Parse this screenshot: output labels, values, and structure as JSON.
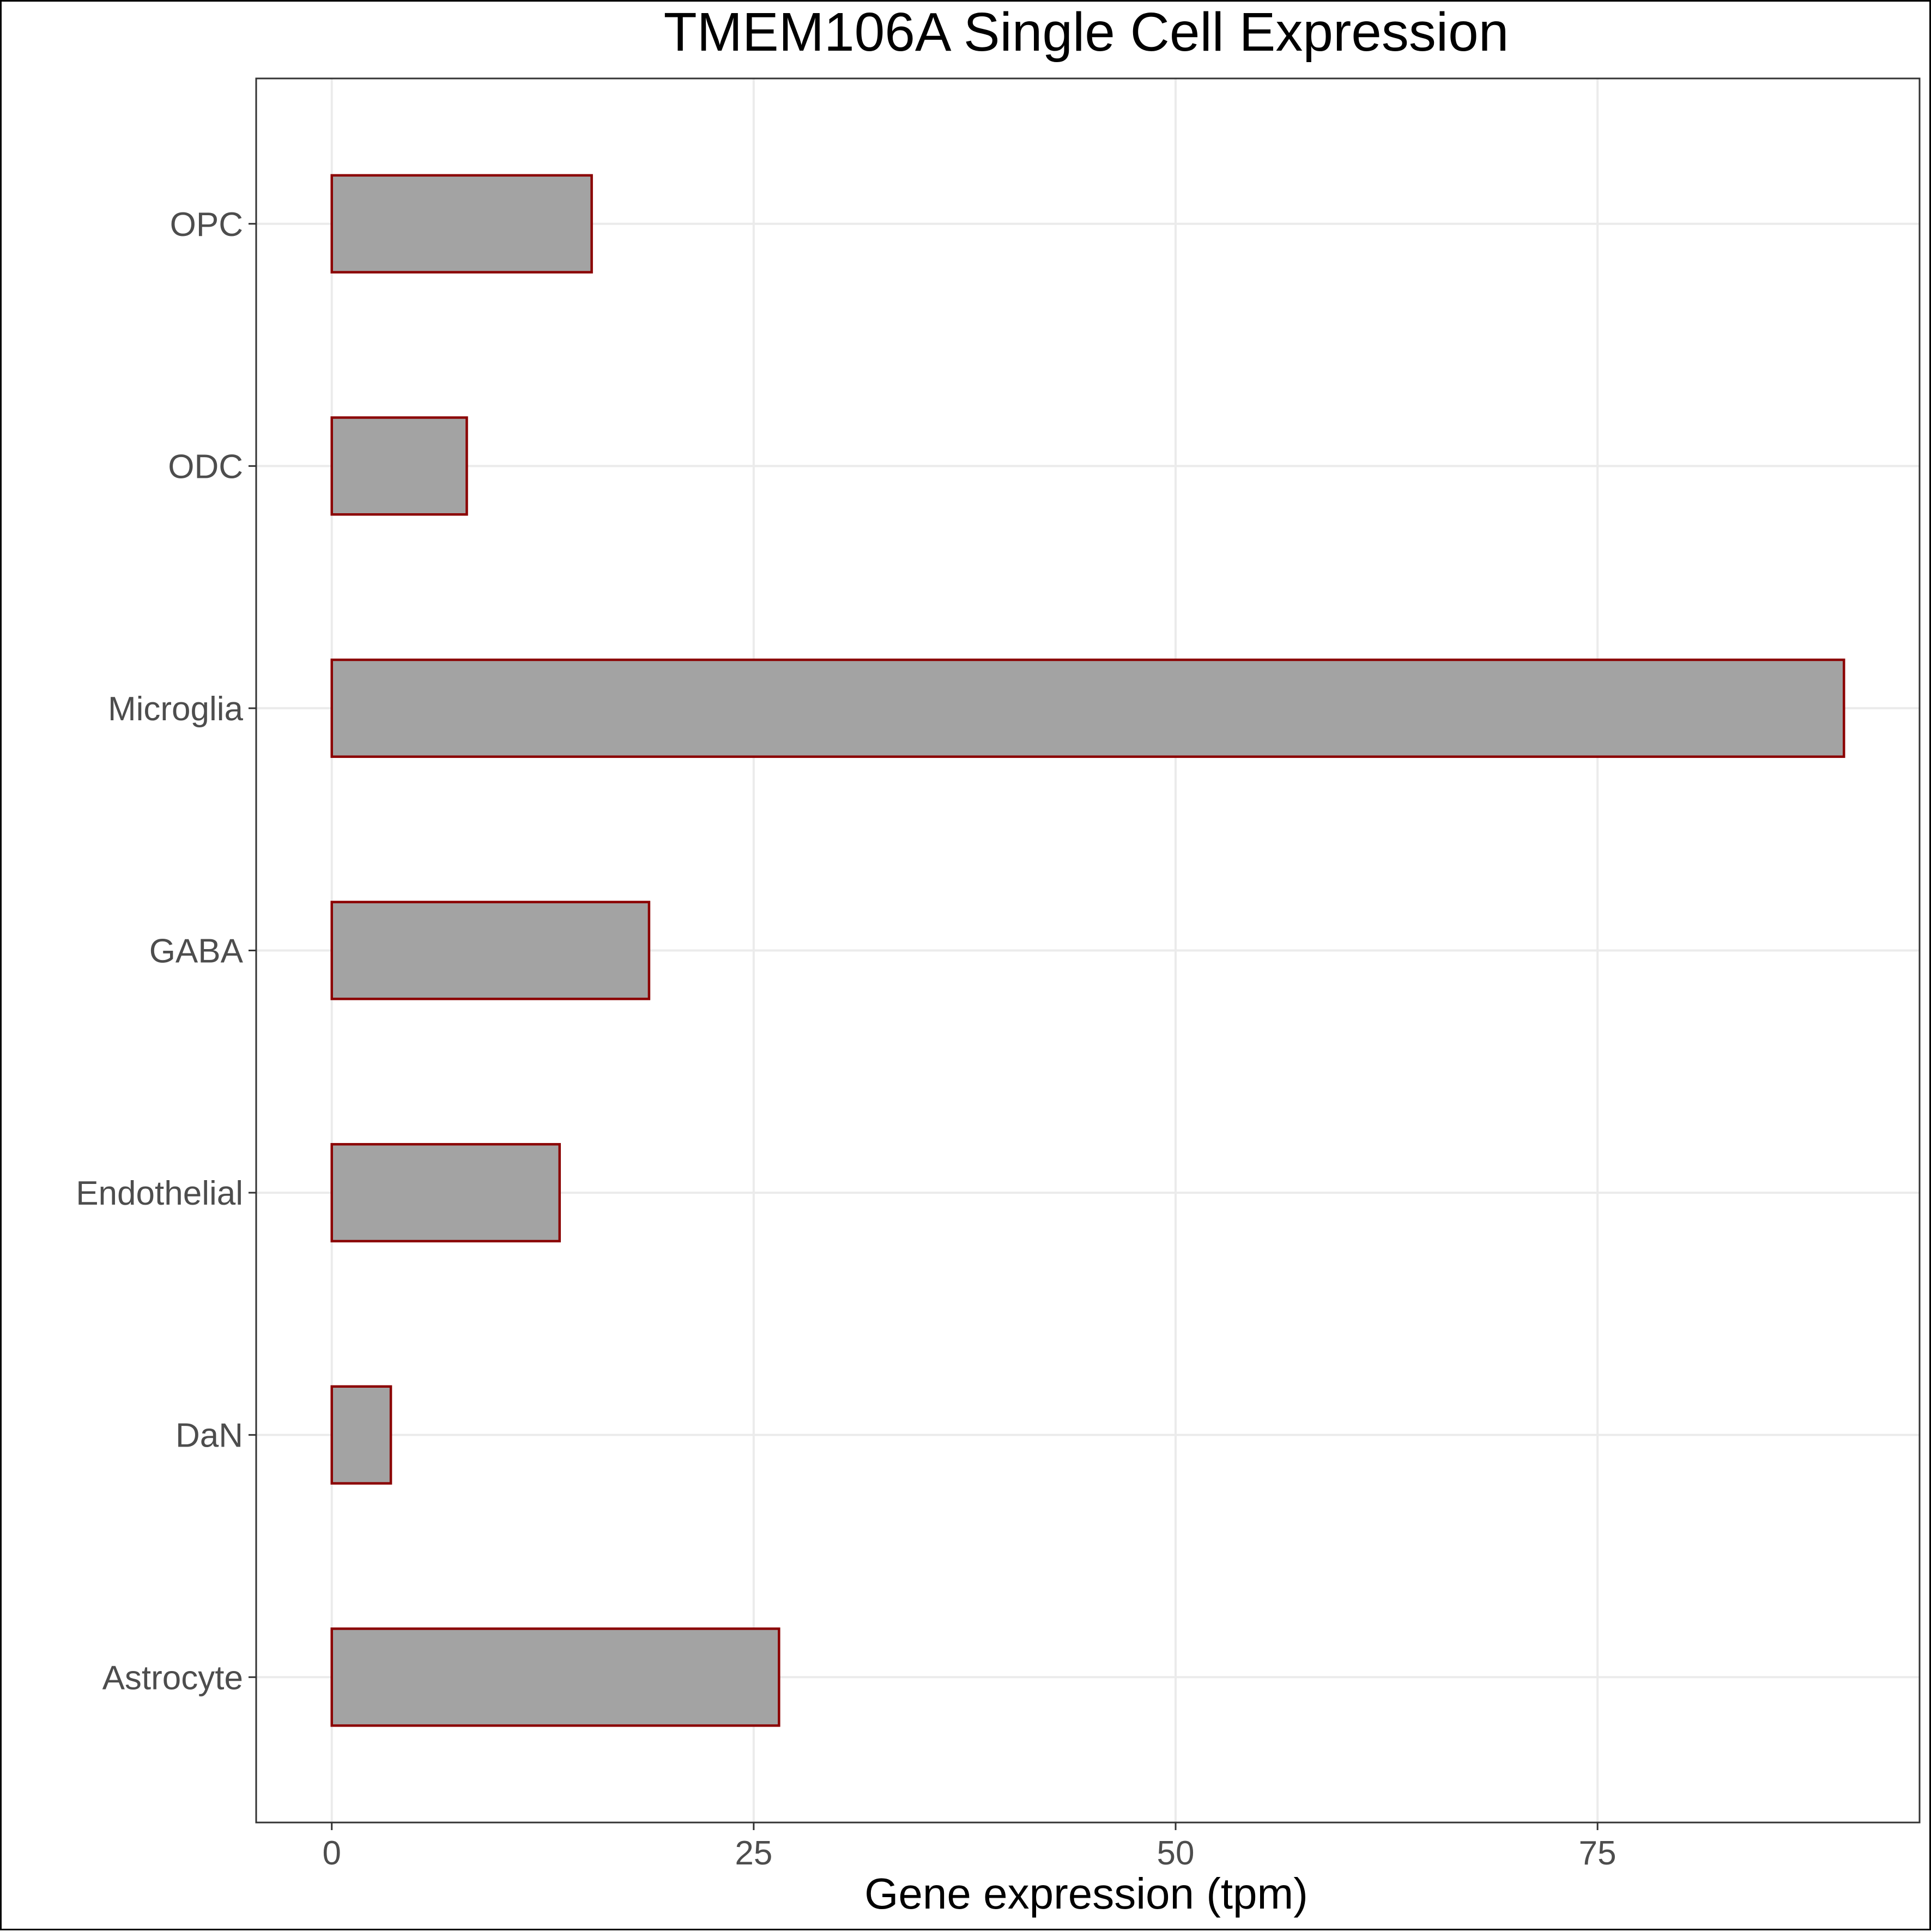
{
  "chart_data": {
    "type": "bar",
    "orientation": "horizontal",
    "title": "TMEM106A Single Cell Expression",
    "xlabel": "Gene expression (tpm)",
    "ylabel": "",
    "categories": [
      "Astrocyte",
      "DaN",
      "Endothelial",
      "GABA",
      "Microglia",
      "ODC",
      "OPC"
    ],
    "values": [
      26.5,
      3.5,
      13.5,
      18.8,
      89.6,
      8.0,
      15.4
    ],
    "xlim": [
      -4.48,
      94.08
    ],
    "xticks": [
      0,
      25,
      50,
      75
    ],
    "xtick_labels": [
      "0",
      "25",
      "50",
      "75"
    ],
    "grid": true,
    "legend": "none",
    "colors": {
      "bar_fill": "#a3a3a3",
      "bar_outline": "#8b0000",
      "grid": "#ebebeb",
      "tick_label": "#4d4d4d"
    }
  }
}
